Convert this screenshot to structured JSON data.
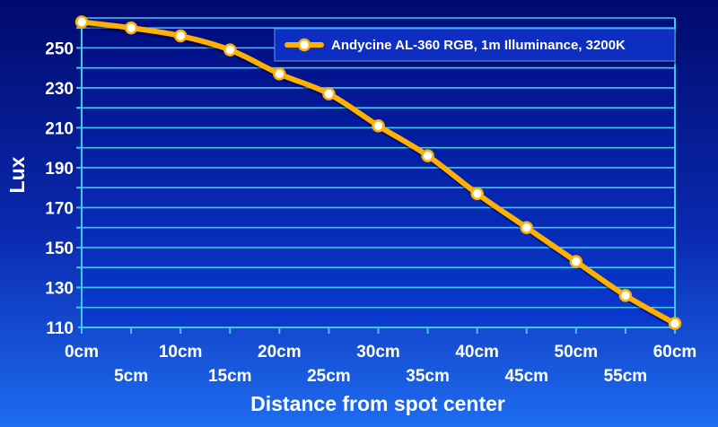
{
  "chart_data": {
    "type": "line",
    "title": "",
    "xlabel": "Distance from spot center",
    "ylabel": "Lux",
    "categories": [
      "0cm",
      "5cm",
      "10cm",
      "15cm",
      "20cm",
      "25cm",
      "30cm",
      "35cm",
      "40cm",
      "45cm",
      "50cm",
      "55cm",
      "60cm"
    ],
    "series": [
      {
        "name": "Andycine AL-360 RGB, 1m Illuminance, 3200K",
        "values": [
          263,
          260,
          256,
          249,
          237,
          227,
          211,
          196,
          177,
          160,
          143,
          126,
          112
        ]
      }
    ],
    "ylim": [
      110,
      265
    ],
    "yticks": [
      "110",
      "130",
      "150",
      "170",
      "190",
      "210",
      "230",
      "250"
    ],
    "grid": true,
    "legend": "top-right",
    "colors": {
      "line": "#ffb000",
      "marker_fill": "#ffffff",
      "grid": "#3ec8f0",
      "text": "#ffffff"
    }
  }
}
